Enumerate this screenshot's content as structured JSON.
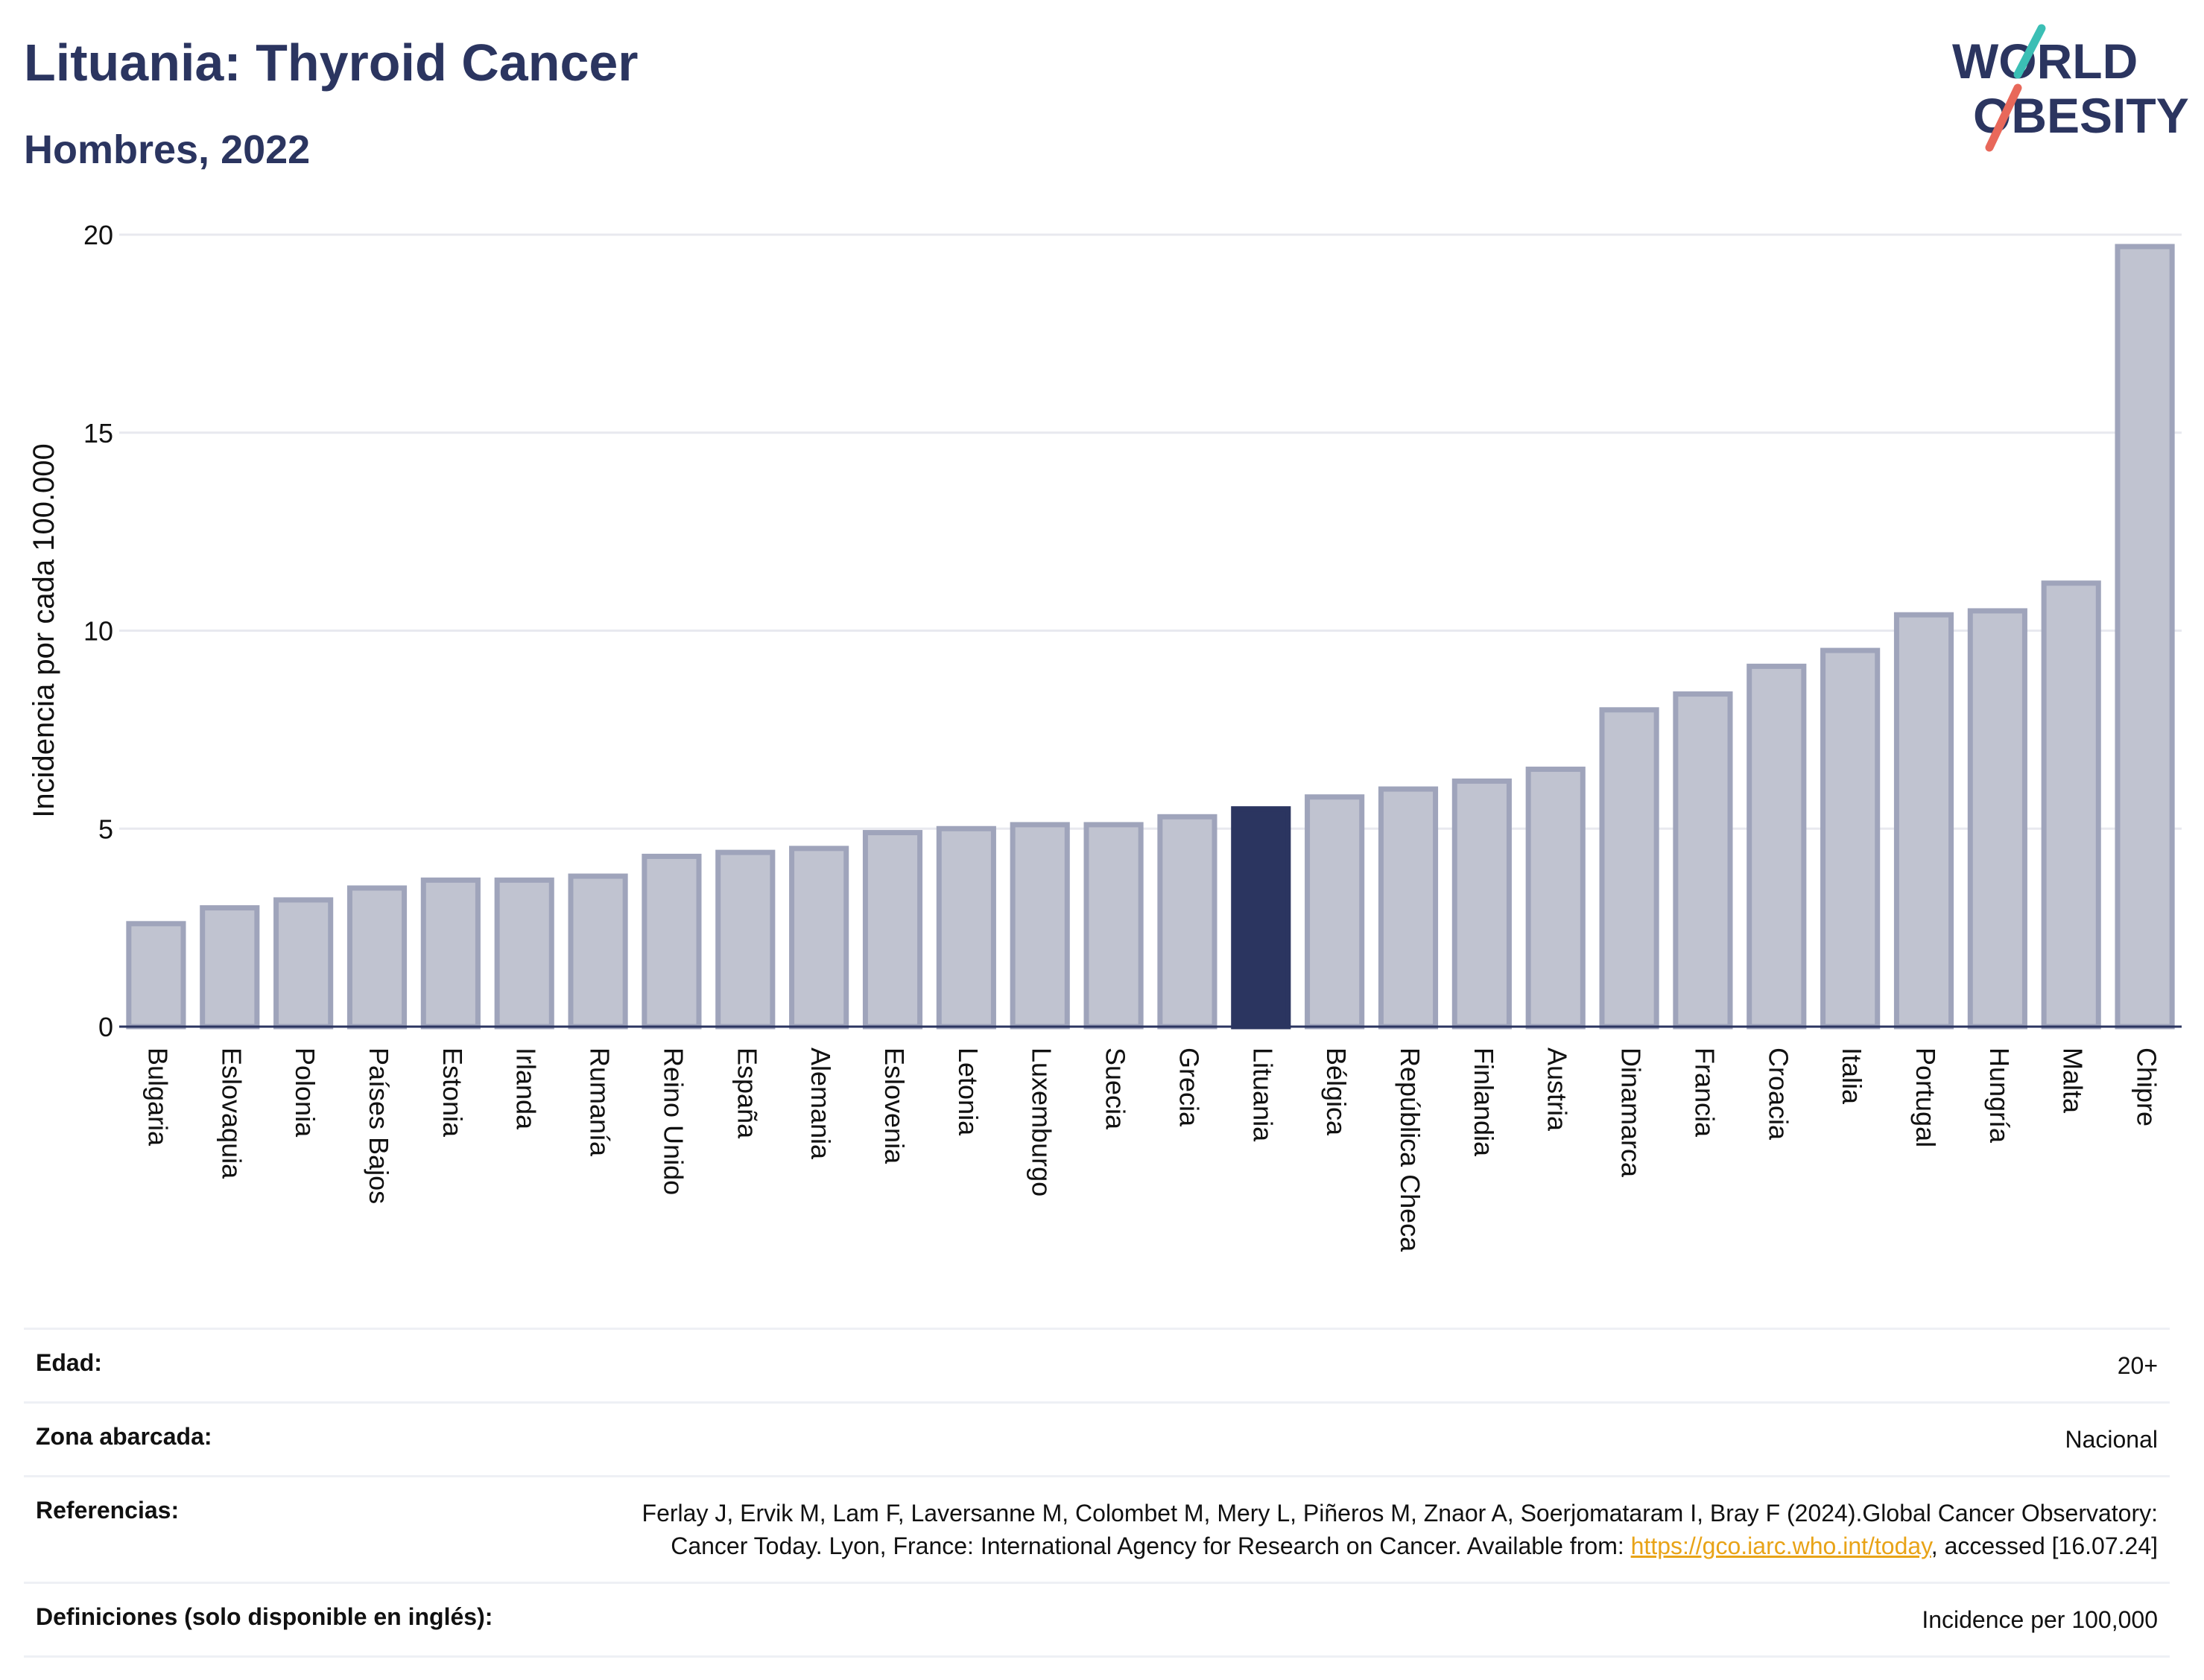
{
  "header": {
    "title": "Lituania: Thyroid Cancer",
    "subtitle": "Hombres, 2022"
  },
  "logo": {
    "line1": "WORLD",
    "line2": "OBESITY",
    "accent_teal": "#3bbfb5",
    "accent_coral": "#e8685a",
    "brand": "#2b3560"
  },
  "colors": {
    "bar": "#c0c3d0",
    "bar_stroke": "#9fa4bb",
    "highlight": "#2b3560",
    "grid": "#e8e9ef",
    "axis": "#2b3560"
  },
  "chart_data": {
    "type": "bar",
    "ylabel": "Incidencia por cada 100.000",
    "ylim": [
      0,
      20
    ],
    "yticks": [
      0,
      5,
      10,
      15,
      20
    ],
    "grid": true,
    "highlight": "Lituania",
    "categories": [
      "Bulgaria",
      "Eslovaquia",
      "Polonia",
      "Países Bajos",
      "Estonia",
      "Irlanda",
      "Rumanía",
      "Reino Unido",
      "España",
      "Alemania",
      "Eslovenia",
      "Letonia",
      "Luxemburgo",
      "Suecia",
      "Grecia",
      "Lituania",
      "Bélgica",
      "República Checa",
      "Finlandia",
      "Austria",
      "Dinamarca",
      "Francia",
      "Croacia",
      "Italia",
      "Portugal",
      "Hungría",
      "Malta",
      "Chipre"
    ],
    "values": [
      2.6,
      3.0,
      3.2,
      3.5,
      3.7,
      3.7,
      3.8,
      4.3,
      4.4,
      4.5,
      4.9,
      5.0,
      5.1,
      5.1,
      5.3,
      5.5,
      5.8,
      6.0,
      6.2,
      6.5,
      8.0,
      8.4,
      9.1,
      9.5,
      10.4,
      10.5,
      11.2,
      19.7
    ]
  },
  "meta": {
    "age_label": "Edad:",
    "age_value": "20+",
    "area_label": "Zona abarcada:",
    "area_value": "Nacional",
    "refs_label": "Referencias:",
    "refs_text_1": "Ferlay J, Ervik M, Lam F, Laversanne M, Colombet M, Mery L, Piñeros M, Znaor A, Soerjomataram I, Bray F (2024).Global Cancer Observatory: Cancer Today. Lyon, France: International Agency for Research on Cancer. Available from: ",
    "refs_link": "https://gco.iarc.who.int/today",
    "refs_text_2": ", accessed [16.07.24]",
    "defs_label": "Definiciones (solo disponible en inglés):",
    "defs_value": "Incidence per 100,000"
  }
}
